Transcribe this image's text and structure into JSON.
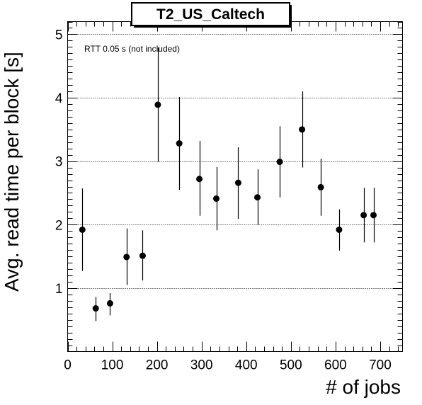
{
  "chart_data": {
    "type": "scatter",
    "title": "T2_US_Caltech",
    "xlabel": "# of jobs",
    "ylabel": "Avg. read time per block [s]",
    "annotation": "RTT 0.05 s (not included)",
    "xlim": [
      0,
      750
    ],
    "ylim": [
      0,
      5.2
    ],
    "x_ticks": [
      0,
      100,
      200,
      300,
      400,
      500,
      600,
      700
    ],
    "y_ticks": [
      1,
      2,
      3,
      4,
      5
    ],
    "grid": "y-dotted",
    "series": [
      {
        "points": [
          {
            "x": 33,
            "y": 1.92,
            "yerr_low": 0.65,
            "yerr_high": 0.65
          },
          {
            "x": 63,
            "y": 0.68,
            "yerr_low": 0.2,
            "yerr_high": 0.18
          },
          {
            "x": 95,
            "y": 0.76,
            "yerr_low": 0.19,
            "yerr_high": 0.16
          },
          {
            "x": 132,
            "y": 1.49,
            "yerr_low": 0.44,
            "yerr_high": 0.45
          },
          {
            "x": 168,
            "y": 1.51,
            "yerr_low": 0.39,
            "yerr_high": 0.4
          },
          {
            "x": 202,
            "y": 3.89,
            "yerr_low": 0.9,
            "yerr_high": 0.9
          },
          {
            "x": 250,
            "y": 3.28,
            "yerr_low": 0.73,
            "yerr_high": 0.73
          },
          {
            "x": 295,
            "y": 2.72,
            "yerr_low": 0.58,
            "yerr_high": 0.6
          },
          {
            "x": 333,
            "y": 2.41,
            "yerr_low": 0.5,
            "yerr_high": 0.5
          },
          {
            "x": 382,
            "y": 2.66,
            "yerr_low": 0.57,
            "yerr_high": 0.56
          },
          {
            "x": 425,
            "y": 2.43,
            "yerr_low": 0.43,
            "yerr_high": 0.44
          },
          {
            "x": 475,
            "y": 2.99,
            "yerr_low": 0.56,
            "yerr_high": 0.56
          },
          {
            "x": 525,
            "y": 3.5,
            "yerr_low": 0.6,
            "yerr_high": 0.6
          },
          {
            "x": 567,
            "y": 2.59,
            "yerr_low": 0.45,
            "yerr_high": 0.45
          },
          {
            "x": 608,
            "y": 1.92,
            "yerr_low": 0.33,
            "yerr_high": 0.32
          },
          {
            "x": 663,
            "y": 2.15,
            "yerr_low": 0.43,
            "yerr_high": 0.43
          },
          {
            "x": 685,
            "y": 2.15,
            "yerr_low": 0.43,
            "yerr_high": 0.43
          }
        ]
      }
    ]
  }
}
